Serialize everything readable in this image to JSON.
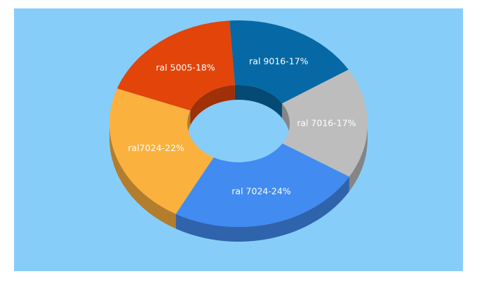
{
  "chart_data": {
    "type": "pie",
    "variant": "donut-3d",
    "background_color": "#87cdf9",
    "slices": [
      {
        "label": "ral 9016-17%",
        "value": 17,
        "color": "#0669a5",
        "side_color": "#044a74"
      },
      {
        "label": "ral 7016-17%",
        "value": 17,
        "color": "#bdbdbd",
        "side_color": "#858585"
      },
      {
        "label": "ral 7024-24%",
        "value": 24,
        "color": "#418bf1",
        "side_color": "#2f63ac"
      },
      {
        "label": "ral7024-22%",
        "value": 22,
        "color": "#fbb13e",
        "side_color": "#b27d2c"
      },
      {
        "label": "ral 5005-18%",
        "value": 18,
        "color": "#e2440a",
        "side_color": "#9f3007"
      }
    ]
  }
}
